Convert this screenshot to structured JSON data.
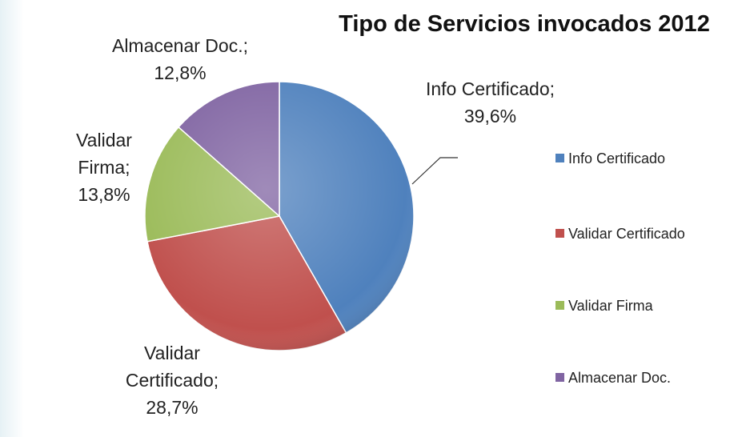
{
  "chart_data": {
    "type": "pie",
    "title": "Tipo de Servicios invocados 2012",
    "categories": [
      "Info Certificado",
      "Validar Certificado",
      "Validar Firma",
      "Almacenar Doc."
    ],
    "values": [
      39.6,
      28.7,
      13.8,
      12.8
    ],
    "value_labels": [
      "Info Certificado; 39,6%",
      "Validar Certificado; 28,7%",
      "Validar Firma; 13,8%",
      "Almacenar Doc.; 12,8%"
    ],
    "colors": [
      "#4f81bd",
      "#c0504d",
      "#9bbb59",
      "#8064a2"
    ],
    "legend": "right"
  }
}
